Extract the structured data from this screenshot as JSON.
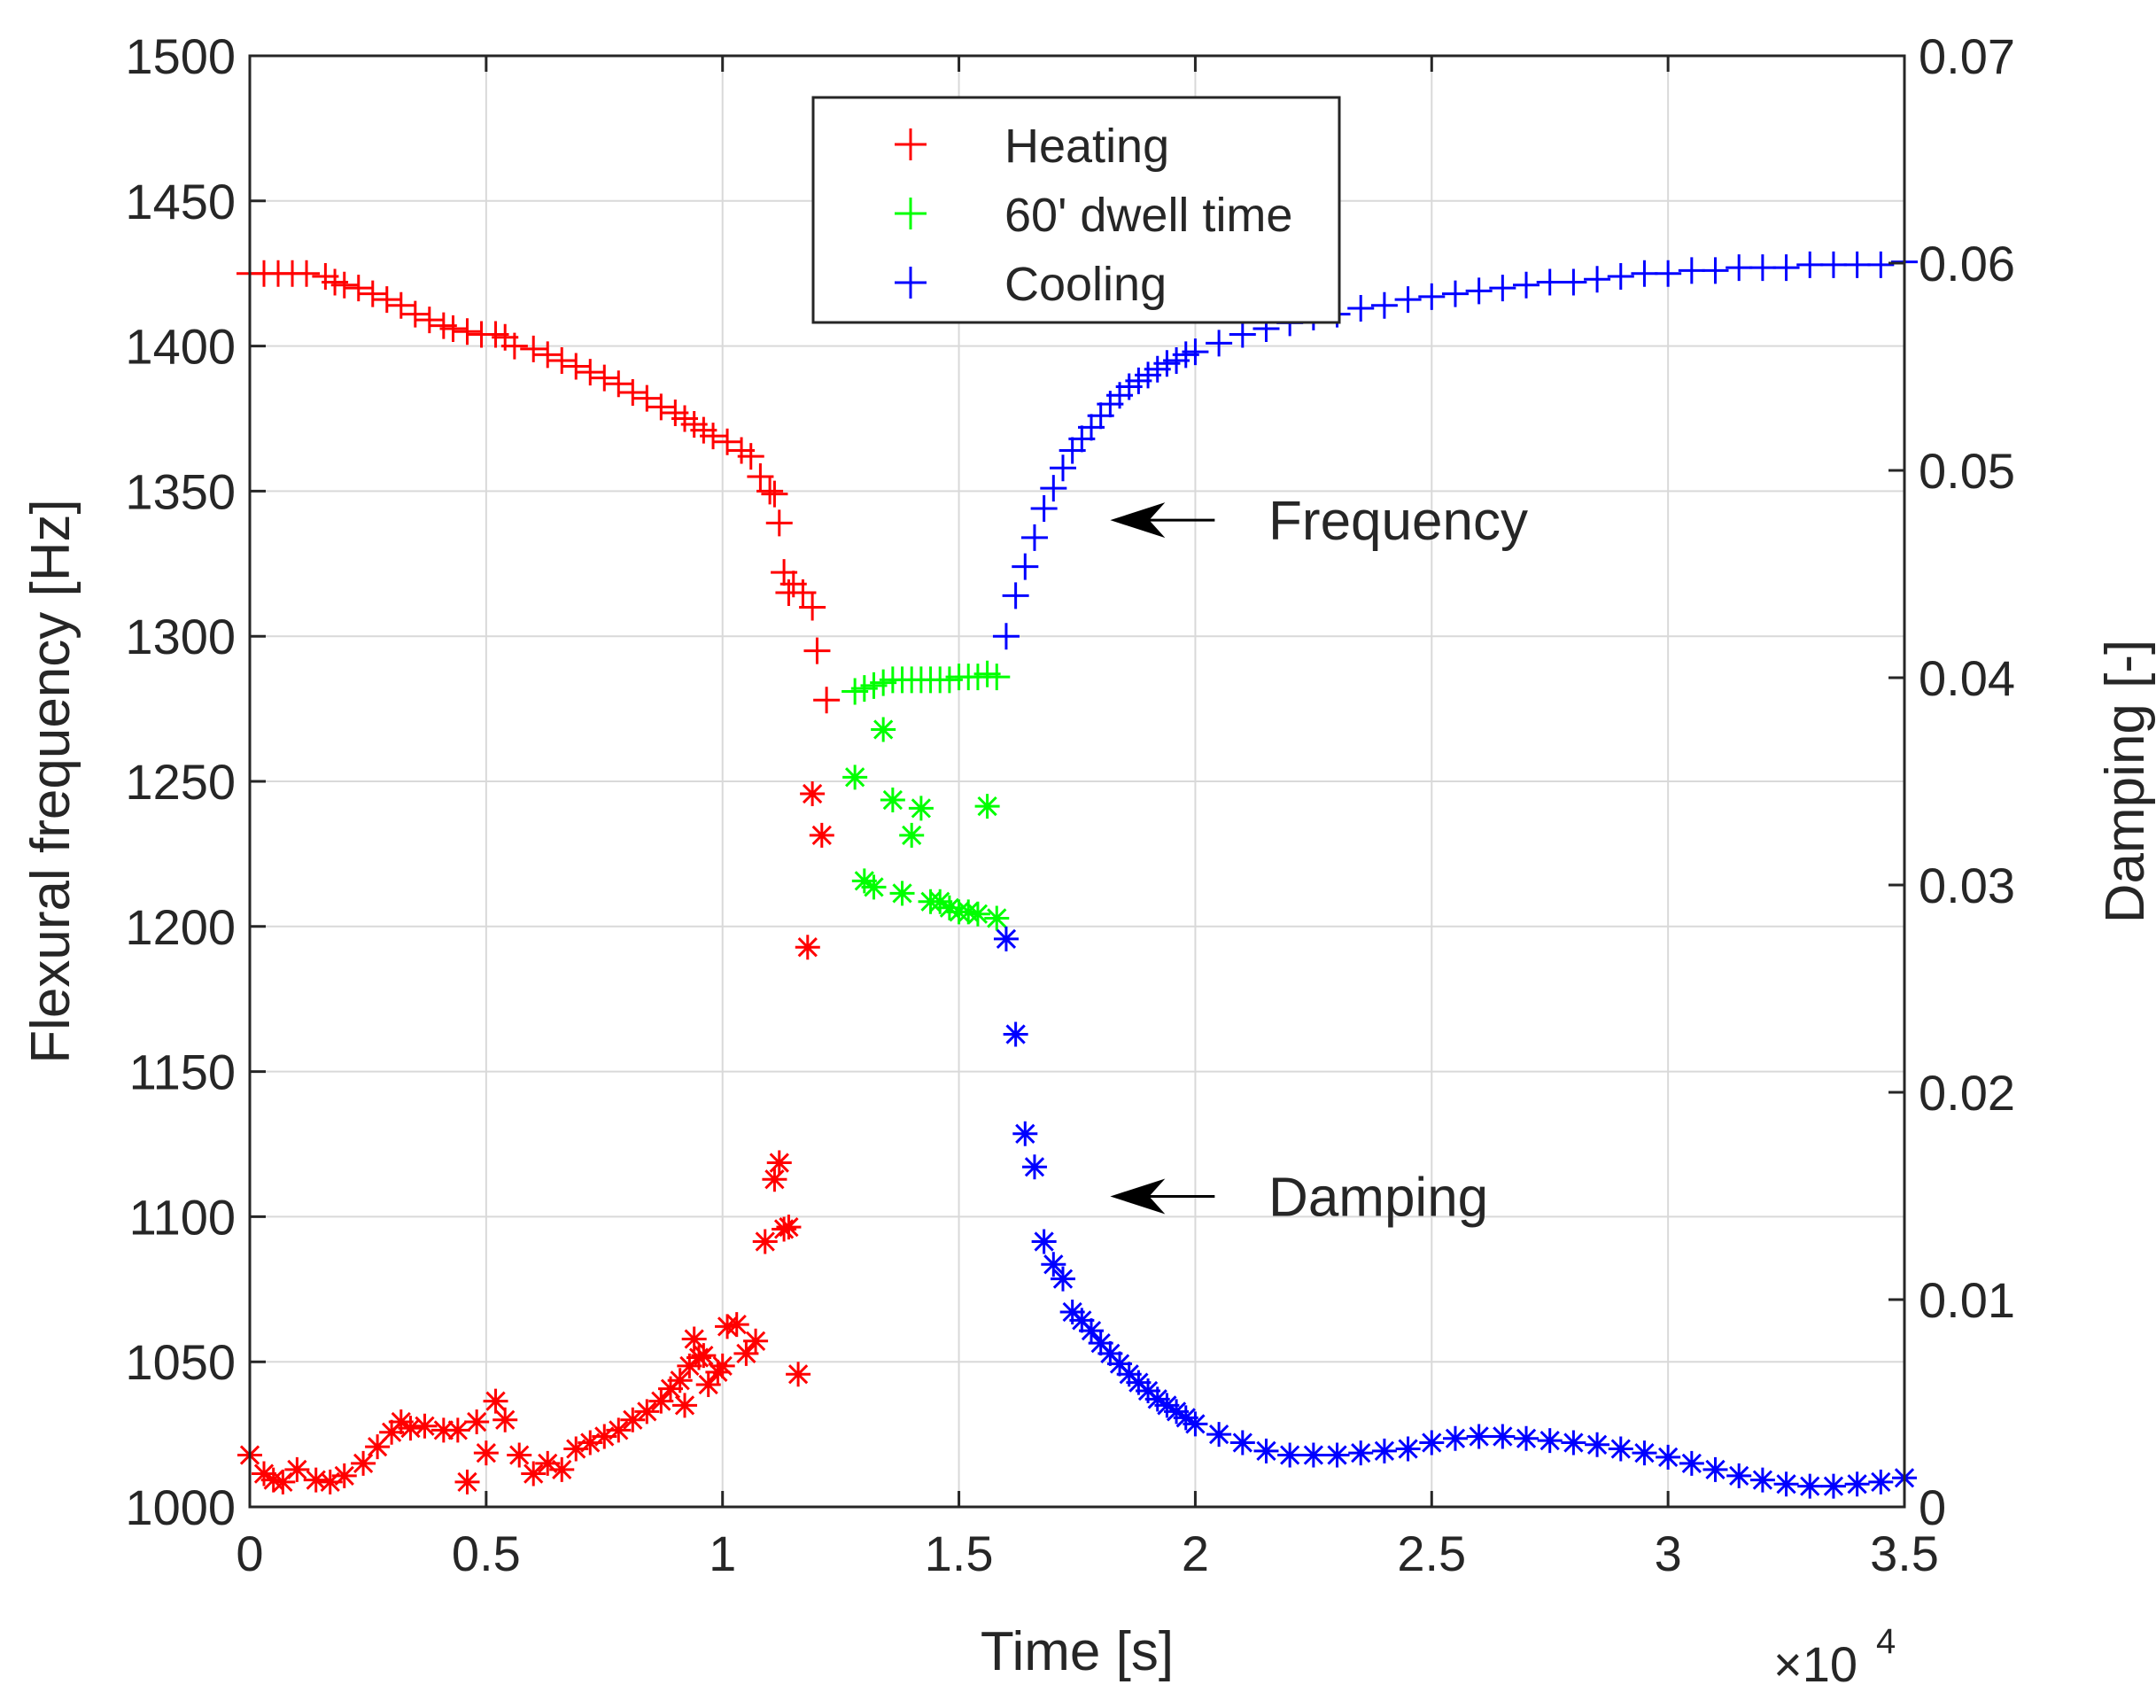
{
  "chart_data": {
    "type": "scatter",
    "title": "",
    "xlabel": "Time [s]",
    "ylabel_left": "Flexural frequency [Hz]",
    "ylabel_right": "Damping [-]",
    "x_multiplier_label": "×10",
    "x_multiplier_exponent": "4",
    "xlim": [
      0,
      3.5
    ],
    "ylim_left": [
      1000,
      1500
    ],
    "ylim_right": [
      0,
      0.07
    ],
    "grid": true,
    "legend_position": "top-center",
    "x_ticks": [
      "0",
      "0.5",
      "1",
      "1.5",
      "2",
      "2.5",
      "3",
      "3.5"
    ],
    "y_left_ticks": [
      "1000",
      "1050",
      "1100",
      "1150",
      "1200",
      "1250",
      "1300",
      "1350",
      "1400",
      "1450",
      "1500"
    ],
    "y_right_ticks": [
      "0",
      "0.01",
      "0.02",
      "0.03",
      "0.04",
      "0.05",
      "0.06",
      "0.07"
    ],
    "legend": [
      {
        "name": "Heating",
        "color": "#ff0000",
        "marker": "+"
      },
      {
        "name": "60' dwell time",
        "color": "#00ff00",
        "marker": "+"
      },
      {
        "name": "Cooling",
        "color": "#0000ff",
        "marker": "+"
      }
    ],
    "annotations": [
      {
        "text": "Frequency",
        "x": 1.9,
        "y_left": 1340
      },
      {
        "text": "Damping",
        "x": 1.9,
        "y_left": 1107
      }
    ],
    "series": [
      {
        "name": "Heating frequency",
        "axis": "left",
        "marker": "+",
        "color": "#ff0000",
        "x": [
          0.0,
          0.03,
          0.06,
          0.09,
          0.12,
          0.16,
          0.18,
          0.2,
          0.23,
          0.26,
          0.29,
          0.32,
          0.35,
          0.38,
          0.41,
          0.43,
          0.46,
          0.49,
          0.52,
          0.54,
          0.56,
          0.6,
          0.63,
          0.66,
          0.69,
          0.72,
          0.75,
          0.78,
          0.81,
          0.84,
          0.87,
          0.9,
          0.92,
          0.94,
          0.96,
          0.98,
          1.01,
          1.04,
          1.06,
          1.08,
          1.1,
          1.11,
          1.12,
          1.13,
          1.14,
          1.15,
          1.17,
          1.19,
          1.2,
          1.22
        ],
        "y": [
          1425,
          1425,
          1425,
          1425,
          1425,
          1424,
          1422,
          1421,
          1420,
          1418,
          1416,
          1414,
          1411,
          1409,
          1407,
          1406,
          1405,
          1404,
          1404,
          1403,
          1400,
          1399,
          1397,
          1395,
          1393,
          1391,
          1389,
          1387,
          1384,
          1382,
          1379,
          1377,
          1375,
          1373,
          1371,
          1369,
          1367,
          1364,
          1362,
          1355,
          1350,
          1349,
          1339,
          1322,
          1315,
          1318,
          1315,
          1310,
          1295,
          1278
        ]
      },
      {
        "name": "Dwell frequency",
        "axis": "left",
        "marker": "+",
        "color": "#00ff00",
        "x": [
          1.28,
          1.3,
          1.32,
          1.34,
          1.36,
          1.38,
          1.4,
          1.42,
          1.44,
          1.46,
          1.48,
          1.5,
          1.52,
          1.54,
          1.56,
          1.58
        ],
        "y": [
          1281,
          1282,
          1283,
          1284,
          1285,
          1285,
          1285,
          1285,
          1285,
          1285,
          1285,
          1286,
          1286,
          1286,
          1287,
          1286
        ]
      },
      {
        "name": "Cooling frequency",
        "axis": "left",
        "marker": "+",
        "color": "#0000ff",
        "x": [
          1.6,
          1.62,
          1.64,
          1.66,
          1.68,
          1.7,
          1.72,
          1.74,
          1.76,
          1.78,
          1.8,
          1.82,
          1.84,
          1.86,
          1.88,
          1.9,
          1.92,
          1.94,
          1.96,
          1.98,
          2.0,
          2.05,
          2.1,
          2.15,
          2.2,
          2.25,
          2.3,
          2.35,
          2.4,
          2.45,
          2.5,
          2.55,
          2.6,
          2.65,
          2.7,
          2.75,
          2.8,
          2.85,
          2.9,
          2.95,
          3.0,
          3.05,
          3.1,
          3.15,
          3.2,
          3.25,
          3.3,
          3.35,
          3.4,
          3.45,
          3.5
        ],
        "y": [
          1300,
          1314,
          1324,
          1334,
          1344,
          1351,
          1358,
          1364,
          1368,
          1372,
          1376,
          1380,
          1383,
          1386,
          1388,
          1390,
          1392,
          1394,
          1395,
          1397,
          1398,
          1401,
          1404,
          1406,
          1408,
          1410,
          1411,
          1413,
          1414,
          1416,
          1417,
          1418,
          1419,
          1420,
          1421,
          1422,
          1422,
          1423,
          1424,
          1425,
          1425,
          1426,
          1426,
          1427,
          1427,
          1427,
          1428,
          1428,
          1428,
          1428,
          1429
        ]
      },
      {
        "name": "Heating damping",
        "axis": "right",
        "marker": "*",
        "color": "#ff0000",
        "x": [
          0.0,
          0.03,
          0.05,
          0.07,
          0.1,
          0.14,
          0.17,
          0.2,
          0.24,
          0.27,
          0.3,
          0.32,
          0.34,
          0.37,
          0.41,
          0.44,
          0.46,
          0.48,
          0.5,
          0.52,
          0.54,
          0.57,
          0.6,
          0.63,
          0.66,
          0.69,
          0.72,
          0.75,
          0.78,
          0.81,
          0.84,
          0.87,
          0.89,
          0.91,
          0.92,
          0.93,
          0.94,
          0.95,
          0.96,
          0.97,
          0.99,
          1.0,
          1.01,
          1.03,
          1.05,
          1.07,
          1.09,
          1.11,
          1.12,
          1.13,
          1.14,
          1.16,
          1.18,
          1.19,
          1.21
        ],
        "y": [
          0.0025,
          0.0016,
          0.0013,
          0.0012,
          0.0018,
          0.0013,
          0.0012,
          0.0015,
          0.0021,
          0.0029,
          0.0036,
          0.0041,
          0.0038,
          0.0039,
          0.0037,
          0.0037,
          0.0012,
          0.0041,
          0.0026,
          0.0051,
          0.0042,
          0.0025,
          0.0016,
          0.0021,
          0.0018,
          0.0028,
          0.0031,
          0.0034,
          0.0037,
          0.0042,
          0.0046,
          0.0051,
          0.0057,
          0.0061,
          0.0049,
          0.0068,
          0.0081,
          0.0072,
          0.0073,
          0.0059,
          0.0065,
          0.0068,
          0.0087,
          0.0088,
          0.0074,
          0.008,
          0.0128,
          0.0158,
          0.0166,
          0.0134,
          0.0135,
          0.0064,
          0.027,
          0.0344,
          0.0324
        ]
      },
      {
        "name": "Dwell damping",
        "axis": "right",
        "marker": "*",
        "color": "#00ff00",
        "x": [
          1.28,
          1.3,
          1.32,
          1.34,
          1.36,
          1.38,
          1.4,
          1.42,
          1.44,
          1.46,
          1.48,
          1.5,
          1.52,
          1.54,
          1.56,
          1.58
        ],
        "y": [
          0.0352,
          0.0302,
          0.0299,
          0.0375,
          0.0341,
          0.0296,
          0.0324,
          0.0337,
          0.0292,
          0.0292,
          0.0289,
          0.0287,
          0.0287,
          0.0286,
          0.0338,
          0.0284
        ]
      },
      {
        "name": "Cooling damping",
        "axis": "right",
        "marker": "*",
        "color": "#0000ff",
        "x": [
          1.6,
          1.62,
          1.64,
          1.66,
          1.68,
          1.7,
          1.72,
          1.74,
          1.76,
          1.78,
          1.8,
          1.82,
          1.84,
          1.86,
          1.88,
          1.9,
          1.92,
          1.94,
          1.96,
          1.98,
          2.0,
          2.05,
          2.1,
          2.15,
          2.2,
          2.25,
          2.3,
          2.35,
          2.4,
          2.45,
          2.5,
          2.55,
          2.6,
          2.65,
          2.7,
          2.75,
          2.8,
          2.85,
          2.9,
          2.95,
          3.0,
          3.05,
          3.1,
          3.15,
          3.2,
          3.25,
          3.3,
          3.35,
          3.4,
          3.45,
          3.5
        ],
        "y": [
          0.0274,
          0.0228,
          0.018,
          0.0164,
          0.0128,
          0.0117,
          0.011,
          0.0094,
          0.009,
          0.0085,
          0.0079,
          0.0074,
          0.0069,
          0.0064,
          0.006,
          0.0056,
          0.0052,
          0.0049,
          0.0046,
          0.0043,
          0.004,
          0.0035,
          0.0031,
          0.0027,
          0.0025,
          0.0025,
          0.0025,
          0.0026,
          0.0027,
          0.0028,
          0.0031,
          0.0033,
          0.0034,
          0.0034,
          0.0033,
          0.0032,
          0.0031,
          0.003,
          0.0028,
          0.0026,
          0.0024,
          0.0021,
          0.0018,
          0.0015,
          0.0013,
          0.0011,
          0.001,
          0.001,
          0.0011,
          0.0012,
          0.0014
        ]
      }
    ]
  }
}
